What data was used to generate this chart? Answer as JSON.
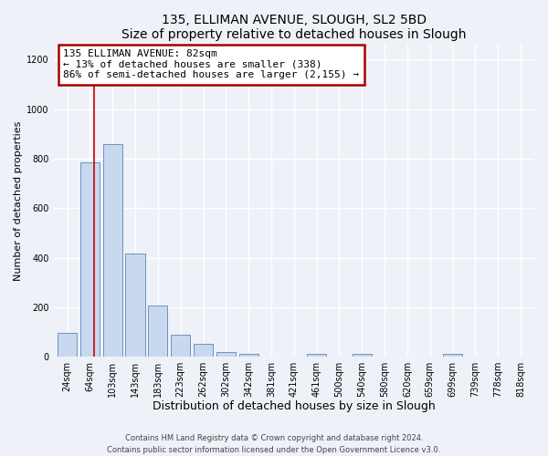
{
  "title": "135, ELLIMAN AVENUE, SLOUGH, SL2 5BD",
  "subtitle": "Size of property relative to detached houses in Slough",
  "xlabel": "Distribution of detached houses by size in Slough",
  "ylabel": "Number of detached properties",
  "bar_labels": [
    "24sqm",
    "64sqm",
    "103sqm",
    "143sqm",
    "183sqm",
    "223sqm",
    "262sqm",
    "302sqm",
    "342sqm",
    "381sqm",
    "421sqm",
    "461sqm",
    "500sqm",
    "540sqm",
    "580sqm",
    "620sqm",
    "659sqm",
    "699sqm",
    "739sqm",
    "778sqm",
    "818sqm"
  ],
  "bar_values": [
    95,
    785,
    860,
    415,
    205,
    90,
    52,
    20,
    13,
    0,
    0,
    10,
    0,
    10,
    0,
    0,
    0,
    10,
    0,
    0,
    0
  ],
  "bar_color": "#c8d8ee",
  "bar_edgecolor": "#7090c0",
  "ylim": [
    0,
    1260
  ],
  "yticks": [
    0,
    200,
    400,
    600,
    800,
    1000,
    1200
  ],
  "property_line_x": 1.18,
  "annotation_line1": "135 ELLIMAN AVENUE: 82sqm",
  "annotation_line2": "← 13% of detached houses are smaller (338)",
  "annotation_line3": "86% of semi-detached houses are larger (2,155) →",
  "annotation_box_color": "#ffffff",
  "annotation_box_edgecolor": "#aa0000",
  "footer_line1": "Contains HM Land Registry data © Crown copyright and database right 2024.",
  "footer_line2": "Contains public sector information licensed under the Open Government Licence v3.0.",
  "background_color": "#eef2f8",
  "grid_color": "#ffffff",
  "title_fontsize": 10,
  "xlabel_fontsize": 9,
  "ylabel_fontsize": 8,
  "tick_fontsize": 7,
  "footer_fontsize": 6,
  "annotation_fontsize": 8
}
